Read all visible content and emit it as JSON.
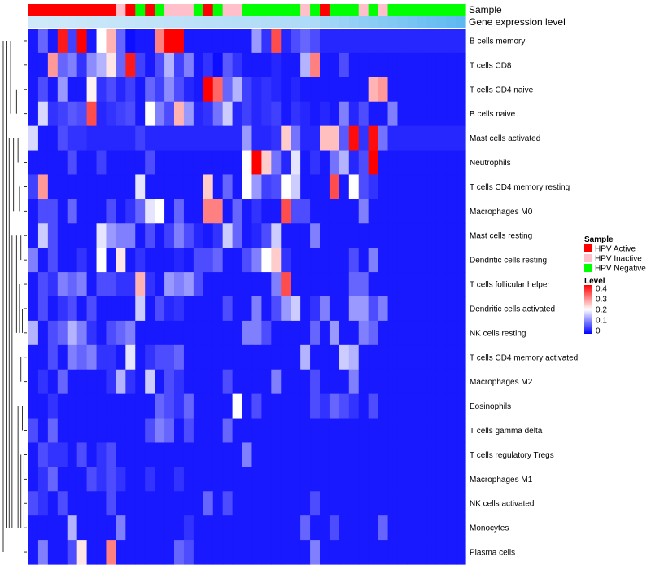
{
  "chart_data": {
    "type": "heatmap",
    "annotation_labels": [
      "Sample",
      "Gene expression level"
    ],
    "rows": [
      "B cells memory",
      "T cells CD8",
      "T cells CD4 naive",
      "B cells naive",
      "Mast cells activated",
      "Neutrophils",
      "T cells CD4 memory resting",
      "Macrophages M0",
      "Mast cells resting",
      "Dendritic cells resting",
      "T cells follicular helper",
      "Dendritic cells activated",
      "NK cells resting",
      "T cells CD4 memory activated",
      "Macrophages M2",
      "Eosinophils",
      "T cells gamma delta",
      "T cells regulatory  Tregs",
      "Macrophages M1",
      "NK cells activated",
      "Monocytes",
      "Plasma cells"
    ],
    "sample_groups": [
      "A",
      "A",
      "A",
      "A",
      "A",
      "A",
      "A",
      "A",
      "A",
      "I",
      "A",
      "G",
      "A",
      "G",
      "I",
      "I",
      "I",
      "G",
      "A",
      "G",
      "I",
      "I",
      "G",
      "G",
      "G",
      "G",
      "G",
      "G",
      "I",
      "G",
      "A",
      "G",
      "G",
      "G",
      "I",
      "G",
      "I",
      "G",
      "G",
      "G",
      "G",
      "G",
      "G",
      "G",
      "G"
    ],
    "gene_expression_level": [
      0.05,
      0.06,
      0.07,
      0.08,
      0.09,
      0.1,
      0.11,
      0.12,
      0.13,
      0.14,
      0.15,
      0.16,
      0.17,
      0.18,
      0.19,
      0.2,
      0.21,
      0.22,
      0.23,
      0.24,
      0.25,
      0.26,
      0.27,
      0.28,
      0.29,
      0.3,
      0.31,
      0.32,
      0.33,
      0.34,
      0.42,
      0.46,
      0.5,
      0.54,
      0.58,
      0.62,
      0.66,
      0.7,
      0.74,
      0.78,
      0.82,
      0.86,
      0.9,
      0.94,
      0.98
    ],
    "sample_legend": {
      "title": "Sample",
      "entries": [
        {
          "key": "A",
          "label": "HPV Active",
          "color": "#ff0000"
        },
        {
          "key": "I",
          "label": "HPV Inactive",
          "color": "#ffc0cb"
        },
        {
          "key": "G",
          "label": "HPV Negative",
          "color": "#00ff00"
        }
      ]
    },
    "level_legend": {
      "title": "Level",
      "ticks": [
        "0.4",
        "0.3",
        "0.2",
        "0.1",
        "0"
      ],
      "range": [
        0,
        0.4
      ],
      "colors": [
        "#0000ff",
        "#ffffff",
        "#ff0000"
      ]
    },
    "values": [
      [
        0.02,
        0.08,
        0.02,
        0.38,
        0.05,
        0.4,
        0.02,
        0.2,
        0.26,
        0.08,
        0.01,
        0.02,
        0.02,
        0.3,
        0.4,
        0.4,
        0.02,
        0.02,
        0.02,
        0.02,
        0.02,
        0.02,
        0.02,
        0.12,
        0.04,
        0.34,
        0.03,
        0.06,
        0.08,
        0.06,
        0.03,
        0.03,
        0.03,
        0.03,
        0.03,
        0.03,
        0.03,
        0.03,
        0.03,
        0.03,
        0.03,
        0.03,
        0.03,
        0.03,
        0.03
      ],
      [
        0.02,
        0.02,
        0.28,
        0.08,
        0.1,
        0.04,
        0.11,
        0.14,
        0.22,
        0.08,
        0.38,
        0.05,
        0.02,
        0.06,
        0.14,
        0.05,
        0.1,
        0.02,
        0.04,
        0.01,
        0.07,
        0.04,
        0.02,
        0.02,
        0.02,
        0.03,
        0.02,
        0.02,
        0.14,
        0.3,
        0.02,
        0.02,
        0.06,
        0.02,
        0.02,
        0.02,
        0.02,
        0.02,
        0.02,
        0.02,
        0.02,
        0.02,
        0.02,
        0.02,
        0.02
      ],
      [
        0.02,
        0.06,
        0.02,
        0.12,
        0.02,
        0.02,
        0.21,
        0.04,
        0.06,
        0.03,
        0.05,
        0.02,
        0.08,
        0.05,
        0.11,
        0.06,
        0.03,
        0.02,
        0.4,
        0.32,
        0.08,
        0.14,
        0.05,
        0.03,
        0.04,
        0.03,
        0.02,
        0.03,
        0.02,
        0.02,
        0.02,
        0.02,
        0.02,
        0.02,
        0.02,
        0.26,
        0.28,
        0.02,
        0.02,
        0.02,
        0.02,
        0.02,
        0.02,
        0.02,
        0.02
      ],
      [
        0.02,
        0.17,
        0.04,
        0.05,
        0.07,
        0.06,
        0.34,
        0.03,
        0.04,
        0.05,
        0.06,
        0.02,
        0.2,
        0.1,
        0.06,
        0.26,
        0.12,
        0.03,
        0.04,
        0.09,
        0.16,
        0.03,
        0.05,
        0.03,
        0.04,
        0.05,
        0.02,
        0.04,
        0.03,
        0.02,
        0.03,
        0.02,
        0.1,
        0.03,
        0.06,
        0.02,
        0.02,
        0.1,
        0.02,
        0.02,
        0.02,
        0.02,
        0.02,
        0.02,
        0.02
      ],
      [
        0.17,
        0.02,
        0.02,
        0.06,
        0.04,
        0.04,
        0.03,
        0.03,
        0.03,
        0.03,
        0.03,
        0.05,
        0.03,
        0.03,
        0.03,
        0.03,
        0.03,
        0.03,
        0.03,
        0.03,
        0.03,
        0.03,
        0.12,
        0.03,
        0.03,
        0.04,
        0.24,
        0.09,
        0.03,
        0.03,
        0.25,
        0.25,
        0.07,
        0.39,
        0.04,
        0.39,
        0.09,
        0.03,
        0.03,
        0.03,
        0.03,
        0.03,
        0.03,
        0.03,
        0.03
      ],
      [
        0.02,
        0.02,
        0.02,
        0.02,
        0.06,
        0.02,
        0.02,
        0.05,
        0.02,
        0.02,
        0.02,
        0.02,
        0.06,
        0.02,
        0.02,
        0.02,
        0.02,
        0.02,
        0.02,
        0.02,
        0.02,
        0.02,
        0.2,
        0.4,
        0.24,
        0.09,
        0.03,
        0.18,
        0.02,
        0.04,
        0.02,
        0.09,
        0.14,
        0.03,
        0.06,
        0.4,
        0.02,
        0.02,
        0.02,
        0.02,
        0.02,
        0.02,
        0.02,
        0.02,
        0.02
      ],
      [
        0.05,
        0.28,
        0.02,
        0.02,
        0.02,
        0.02,
        0.02,
        0.02,
        0.02,
        0.02,
        0.02,
        0.18,
        0.02,
        0.02,
        0.02,
        0.02,
        0.02,
        0.02,
        0.24,
        0.02,
        0.08,
        0.02,
        0.2,
        0.12,
        0.05,
        0.06,
        0.2,
        0.16,
        0.02,
        0.02,
        0.02,
        0.34,
        0.02,
        0.2,
        0.06,
        0.04,
        0.02,
        0.02,
        0.02,
        0.02,
        0.02,
        0.02,
        0.02,
        0.02,
        0.02
      ],
      [
        0.02,
        0.06,
        0.06,
        0.02,
        0.08,
        0.02,
        0.02,
        0.02,
        0.06,
        0.02,
        0.04,
        0.08,
        0.18,
        0.2,
        0.02,
        0.08,
        0.02,
        0.02,
        0.3,
        0.3,
        0.02,
        0.08,
        0.02,
        0.04,
        0.02,
        0.02,
        0.34,
        0.06,
        0.06,
        0.02,
        0.02,
        0.02,
        0.02,
        0.02,
        0.1,
        0.02,
        0.02,
        0.02,
        0.02,
        0.02,
        0.02,
        0.02,
        0.02,
        0.02,
        0.02
      ],
      [
        0.02,
        0.16,
        0.06,
        0.02,
        0.02,
        0.02,
        0.02,
        0.18,
        0.12,
        0.1,
        0.1,
        0.02,
        0.06,
        0.02,
        0.05,
        0.1,
        0.06,
        0.03,
        0.02,
        0.04,
        0.16,
        0.08,
        0.02,
        0.03,
        0.06,
        0.16,
        0.02,
        0.02,
        0.02,
        0.1,
        0.02,
        0.02,
        0.02,
        0.02,
        0.02,
        0.02,
        0.02,
        0.02,
        0.02,
        0.02,
        0.02,
        0.02,
        0.02,
        0.02,
        0.02
      ],
      [
        0.1,
        0.02,
        0.06,
        0.02,
        0.02,
        0.04,
        0.02,
        0.2,
        0.02,
        0.22,
        0.02,
        0.04,
        0.02,
        0.02,
        0.02,
        0.03,
        0.02,
        0.06,
        0.06,
        0.08,
        0.02,
        0.02,
        0.06,
        0.1,
        0.2,
        0.24,
        0.04,
        0.02,
        0.02,
        0.02,
        0.02,
        0.02,
        0.02,
        0.06,
        0.02,
        0.1,
        0.02,
        0.02,
        0.02,
        0.02,
        0.02,
        0.02,
        0.02,
        0.02,
        0.02
      ],
      [
        0.02,
        0.06,
        0.04,
        0.1,
        0.08,
        0.1,
        0.02,
        0.06,
        0.06,
        0.04,
        0.04,
        0.26,
        0.04,
        0.02,
        0.12,
        0.1,
        0.12,
        0.06,
        0.02,
        0.02,
        0.02,
        0.02,
        0.02,
        0.02,
        0.02,
        0.1,
        0.34,
        0.02,
        0.02,
        0.02,
        0.02,
        0.02,
        0.02,
        0.08,
        0.08,
        0.02,
        0.02,
        0.02,
        0.02,
        0.02,
        0.02,
        0.02,
        0.02,
        0.02,
        0.02
      ],
      [
        0.02,
        0.06,
        0.02,
        0.04,
        0.06,
        0.02,
        0.06,
        0.02,
        0.02,
        0.02,
        0.02,
        0.16,
        0.02,
        0.06,
        0.03,
        0.04,
        0.02,
        0.02,
        0.02,
        0.02,
        0.06,
        0.02,
        0.02,
        0.1,
        0.02,
        0.06,
        0.12,
        0.16,
        0.02,
        0.04,
        0.1,
        0.02,
        0.02,
        0.12,
        0.12,
        0.06,
        0.1,
        0.02,
        0.02,
        0.02,
        0.02,
        0.02,
        0.02,
        0.02,
        0.02
      ],
      [
        0.14,
        0.02,
        0.06,
        0.08,
        0.14,
        0.1,
        0.04,
        0.02,
        0.06,
        0.08,
        0.1,
        0.02,
        0.02,
        0.02,
        0.02,
        0.02,
        0.02,
        0.02,
        0.02,
        0.02,
        0.02,
        0.02,
        0.1,
        0.1,
        0.06,
        0.02,
        0.02,
        0.02,
        0.02,
        0.08,
        0.02,
        0.12,
        0.02,
        0.02,
        0.1,
        0.08,
        0.02,
        0.02,
        0.02,
        0.02,
        0.02,
        0.02,
        0.02,
        0.02,
        0.02
      ],
      [
        0.02,
        0.02,
        0.06,
        0.02,
        0.1,
        0.08,
        0.1,
        0.04,
        0.04,
        0.02,
        0.18,
        0.02,
        0.04,
        0.06,
        0.06,
        0.08,
        0.02,
        0.02,
        0.02,
        0.02,
        0.02,
        0.02,
        0.02,
        0.02,
        0.02,
        0.02,
        0.02,
        0.02,
        0.14,
        0.02,
        0.02,
        0.02,
        0.16,
        0.14,
        0.02,
        0.02,
        0.02,
        0.02,
        0.02,
        0.02,
        0.02,
        0.02,
        0.02,
        0.02,
        0.02
      ],
      [
        0.02,
        0.04,
        0.02,
        0.08,
        0.02,
        0.02,
        0.02,
        0.02,
        0.04,
        0.14,
        0.04,
        0.02,
        0.16,
        0.02,
        0.06,
        0.04,
        0.02,
        0.02,
        0.02,
        0.02,
        0.06,
        0.02,
        0.02,
        0.02,
        0.02,
        0.1,
        0.02,
        0.02,
        0.02,
        0.06,
        0.02,
        0.02,
        0.02,
        0.1,
        0.02,
        0.02,
        0.02,
        0.02,
        0.02,
        0.02,
        0.02,
        0.02,
        0.02,
        0.02,
        0.02
      ],
      [
        0.02,
        0.02,
        0.04,
        0.02,
        0.02,
        0.02,
        0.02,
        0.02,
        0.02,
        0.02,
        0.02,
        0.02,
        0.02,
        0.08,
        0.06,
        0.04,
        0.08,
        0.02,
        0.02,
        0.02,
        0.02,
        0.2,
        0.02,
        0.06,
        0.02,
        0.02,
        0.02,
        0.02,
        0.02,
        0.06,
        0.04,
        0.08,
        0.06,
        0.04,
        0.02,
        0.06,
        0.02,
        0.02,
        0.02,
        0.02,
        0.02,
        0.02,
        0.02,
        0.02,
        0.02
      ],
      [
        0.06,
        0.02,
        0.08,
        0.02,
        0.02,
        0.02,
        0.02,
        0.02,
        0.02,
        0.02,
        0.02,
        0.02,
        0.06,
        0.1,
        0.08,
        0.02,
        0.06,
        0.02,
        0.02,
        0.02,
        0.08,
        0.02,
        0.02,
        0.02,
        0.02,
        0.02,
        0.02,
        0.02,
        0.02,
        0.02,
        0.02,
        0.02,
        0.02,
        0.02,
        0.02,
        0.02,
        0.02,
        0.02,
        0.02,
        0.02,
        0.02,
        0.02,
        0.02,
        0.02,
        0.02
      ],
      [
        0.02,
        0.06,
        0.04,
        0.04,
        0.02,
        0.06,
        0.02,
        0.04,
        0.06,
        0.02,
        0.02,
        0.02,
        0.02,
        0.02,
        0.02,
        0.02,
        0.02,
        0.02,
        0.02,
        0.02,
        0.02,
        0.02,
        0.1,
        0.02,
        0.02,
        0.02,
        0.02,
        0.02,
        0.02,
        0.02,
        0.02,
        0.02,
        0.02,
        0.02,
        0.02,
        0.02,
        0.02,
        0.02,
        0.02,
        0.02,
        0.02,
        0.02,
        0.02,
        0.02,
        0.02
      ],
      [
        0.02,
        0.04,
        0.08,
        0.02,
        0.02,
        0.02,
        0.06,
        0.04,
        0.06,
        0.04,
        0.02,
        0.02,
        0.04,
        0.02,
        0.02,
        0.04,
        0.02,
        0.02,
        0.02,
        0.02,
        0.02,
        0.02,
        0.02,
        0.02,
        0.02,
        0.02,
        0.02,
        0.02,
        0.02,
        0.02,
        0.02,
        0.02,
        0.02,
        0.02,
        0.02,
        0.02,
        0.02,
        0.02,
        0.02,
        0.02,
        0.02,
        0.02,
        0.02,
        0.02,
        0.02
      ],
      [
        0.06,
        0.04,
        0.02,
        0.06,
        0.02,
        0.02,
        0.02,
        0.02,
        0.06,
        0.02,
        0.02,
        0.02,
        0.02,
        0.02,
        0.02,
        0.02,
        0.02,
        0.02,
        0.08,
        0.02,
        0.06,
        0.02,
        0.02,
        0.02,
        0.02,
        0.02,
        0.02,
        0.02,
        0.02,
        0.06,
        0.02,
        0.02,
        0.02,
        0.02,
        0.02,
        0.02,
        0.02,
        0.02,
        0.02,
        0.02,
        0.02,
        0.02,
        0.02,
        0.02,
        0.02
      ],
      [
        0.02,
        0.02,
        0.02,
        0.02,
        0.14,
        0.02,
        0.02,
        0.02,
        0.02,
        0.1,
        0.02,
        0.02,
        0.02,
        0.02,
        0.02,
        0.02,
        0.04,
        0.02,
        0.02,
        0.02,
        0.02,
        0.02,
        0.02,
        0.02,
        0.02,
        0.02,
        0.02,
        0.02,
        0.08,
        0.02,
        0.02,
        0.06,
        0.02,
        0.02,
        0.02,
        0.02,
        0.08,
        0.02,
        0.02,
        0.02,
        0.02,
        0.02,
        0.02,
        0.02,
        0.02
      ],
      [
        0.02,
        0.1,
        0.02,
        0.02,
        0.06,
        0.22,
        0.02,
        0.02,
        0.3,
        0.02,
        0.02,
        0.02,
        0.02,
        0.02,
        0.02,
        0.08,
        0.06,
        0.02,
        0.02,
        0.02,
        0.02,
        0.02,
        0.02,
        0.02,
        0.02,
        0.02,
        0.02,
        0.02,
        0.02,
        0.1,
        0.02,
        0.02,
        0.02,
        0.02,
        0.02,
        0.02,
        0.02,
        0.02,
        0.02,
        0.02,
        0.02,
        0.02,
        0.02,
        0.02,
        0.02
      ]
    ]
  }
}
